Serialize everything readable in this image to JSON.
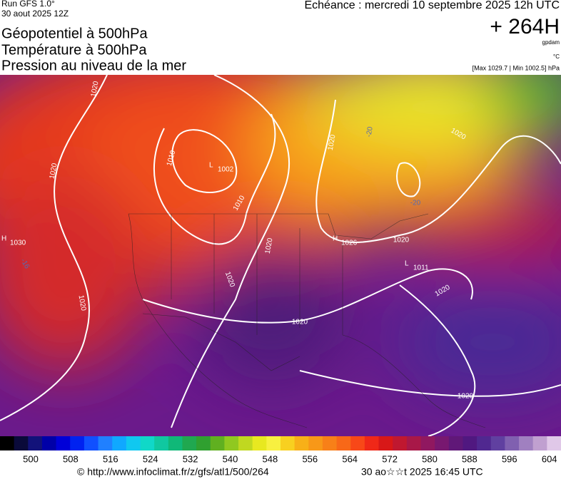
{
  "header": {
    "run": "Run GFS 1.0°",
    "run_date": "30 aout 2025 12Z",
    "titles": [
      "Géopotentiel à 500hPa",
      "Température à 500hPa",
      "Pression au niveau de la mer"
    ],
    "valid": "Echéance : mercredi 10 septembre 2025 12h UTC",
    "lead": "+ 264H",
    "unit_geo": "gpdam",
    "unit_temp": "°C",
    "range": "[Max 1029.7 | Min 1002.5] hPa"
  },
  "map": {
    "centers": [
      {
        "symbol": "H",
        "value": "1030"
      },
      {
        "symbol": "L",
        "value": "1002"
      },
      {
        "symbol": "H",
        "value": "1026"
      },
      {
        "symbol": "L",
        "value": "1011"
      }
    ],
    "contour_labels": [
      "1020",
      "1020",
      "1010",
      "1010",
      "1020",
      "1020",
      "1020",
      "1020",
      "1020",
      "1020",
      "1020",
      "1020",
      "1020",
      "-20",
      "-20",
      "-16"
    ]
  },
  "legend": {
    "ticks": [
      "500",
      "508",
      "516",
      "524",
      "532",
      "540",
      "548",
      "556",
      "564",
      "572",
      "580",
      "588",
      "596",
      "604"
    ]
  },
  "footer": {
    "url": "© http://www.infoclimat.fr/z/gfs/atl1/500/264",
    "stamp": "30 ao☆☆t 2025 16:45 UTC"
  }
}
